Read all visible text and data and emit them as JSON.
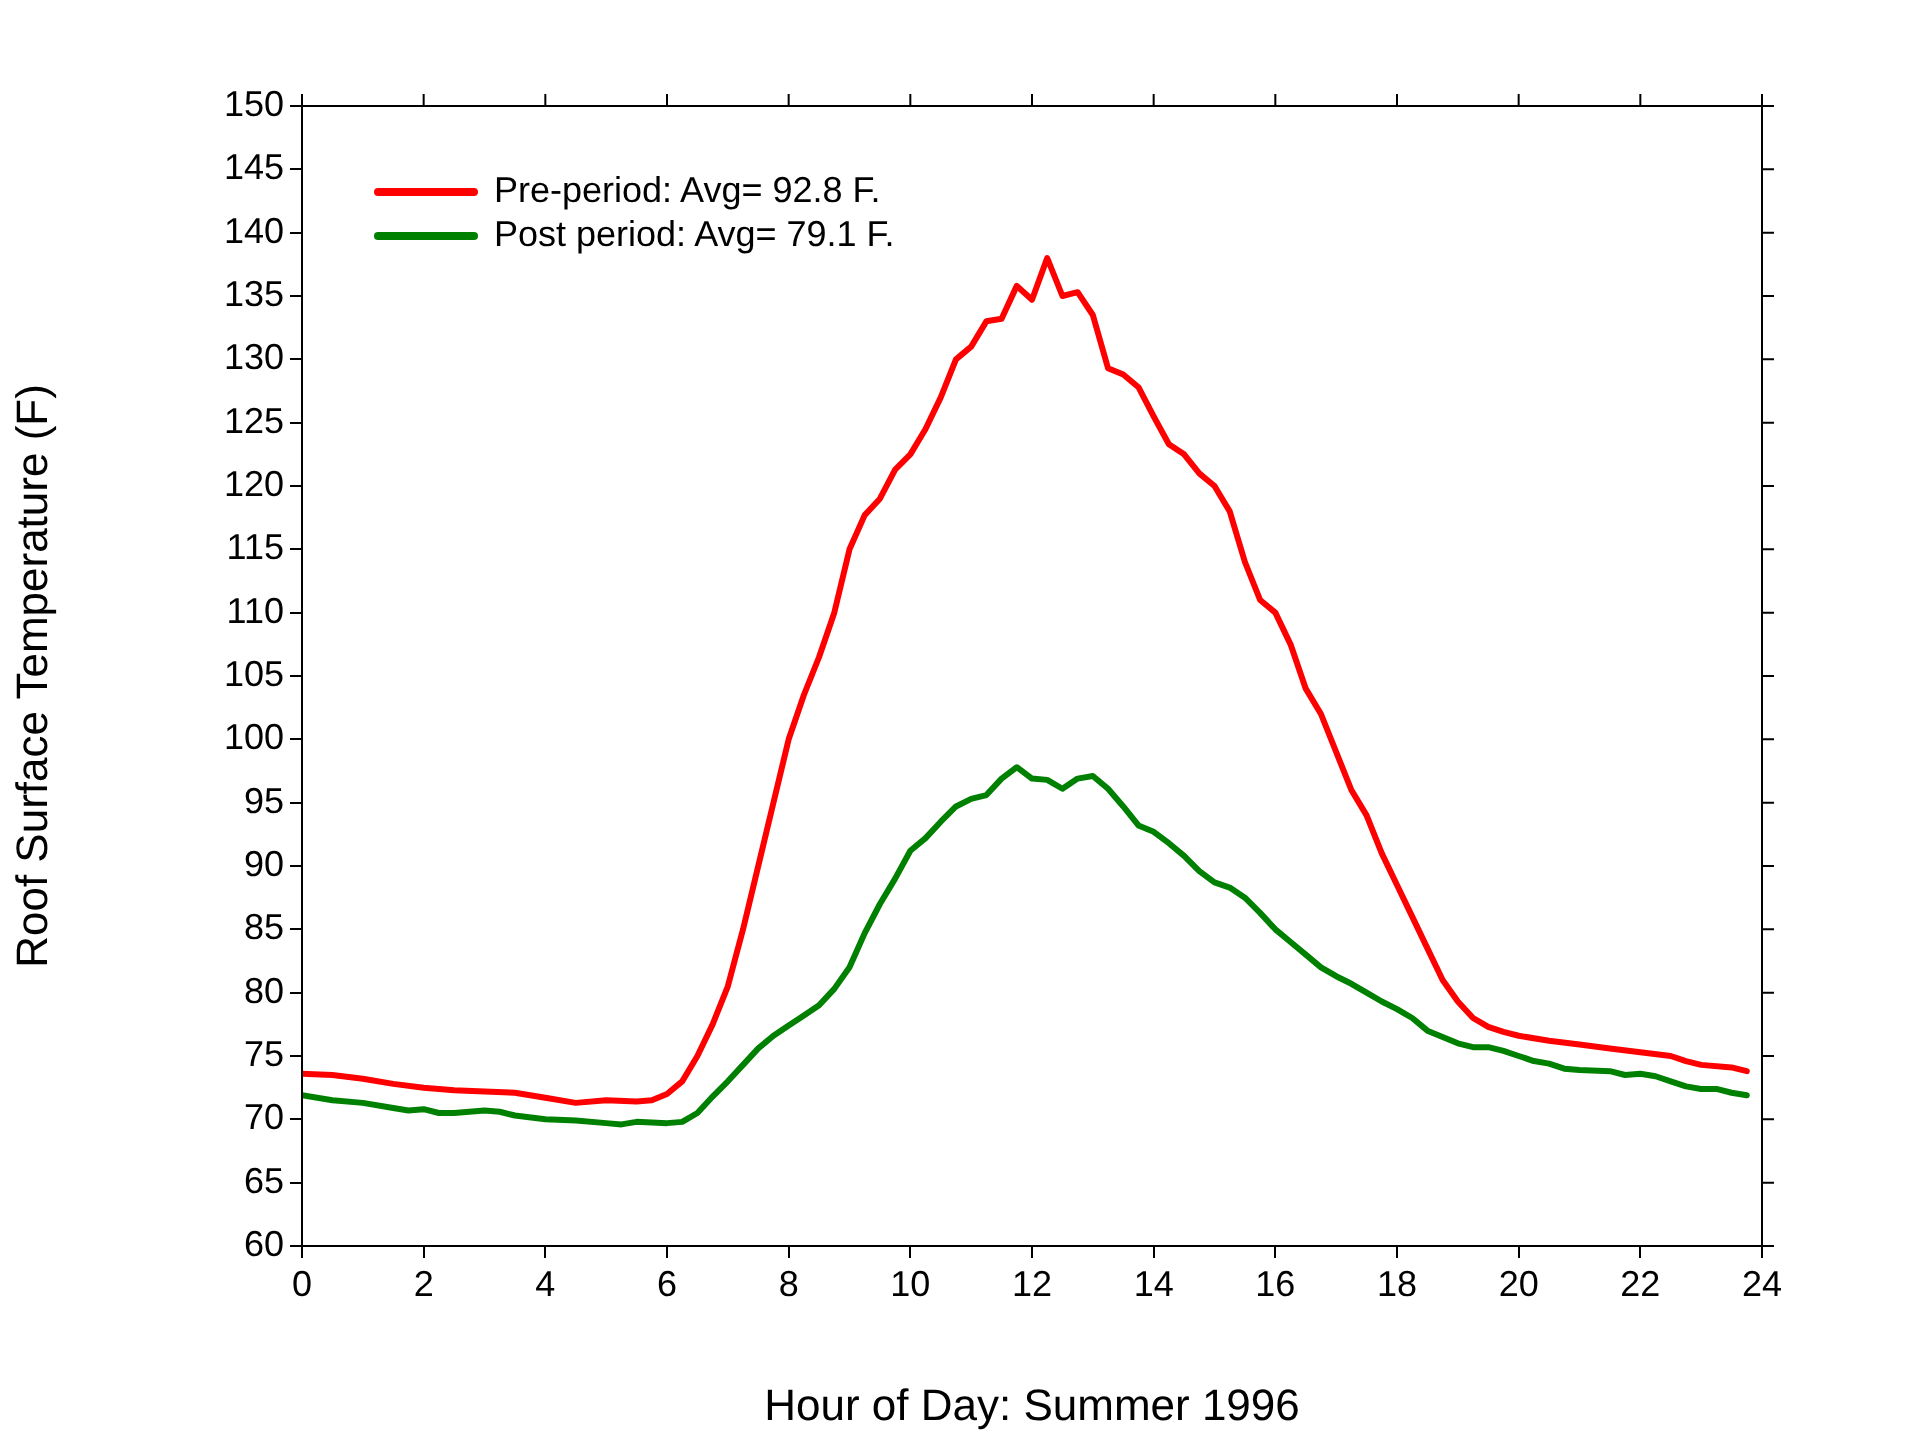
{
  "chart_data": {
    "type": "line",
    "xlabel": "Hour of Day: Summer 1996",
    "ylabel": "Roof Surface Temperature (F)",
    "xlim": [
      0,
      24
    ],
    "xticks": [
      0,
      2,
      4,
      6,
      8,
      10,
      12,
      14,
      16,
      18,
      20,
      22,
      24
    ],
    "ylim": [
      60,
      150
    ],
    "yticks": [
      60,
      65,
      70,
      75,
      80,
      85,
      90,
      95,
      100,
      105,
      110,
      115,
      120,
      125,
      130,
      135,
      140,
      145,
      150
    ],
    "grid": false,
    "legend": "top left",
    "marker": "none",
    "line_style": "solid",
    "series": [
      {
        "name": "Pre-period: Avg= 92.8 F.",
        "color": "#ff0000",
        "x": [
          0,
          0.5,
          1,
          1.5,
          2,
          2.5,
          3,
          3.5,
          4,
          4.5,
          5,
          5.5,
          5.75,
          6,
          6.25,
          6.5,
          6.75,
          7,
          7.25,
          7.5,
          7.75,
          8,
          8.25,
          8.5,
          8.75,
          9,
          9.25,
          9.5,
          9.75,
          10,
          10.25,
          10.5,
          10.75,
          11,
          11.25,
          11.5,
          11.75,
          12,
          12.25,
          12.5,
          12.75,
          13,
          13.25,
          13.5,
          13.75,
          14,
          14.25,
          14.5,
          14.75,
          15,
          15.25,
          15.5,
          15.75,
          16,
          16.25,
          16.5,
          16.75,
          17,
          17.25,
          17.5,
          17.75,
          18,
          18.25,
          18.5,
          18.75,
          19,
          19.25,
          19.5,
          19.75,
          20,
          20.5,
          21,
          21.5,
          22,
          22.5,
          22.75,
          23,
          23.5,
          23.75
        ],
        "values": [
          73.6,
          73.5,
          73.2,
          72.8,
          72.5,
          72.3,
          72.2,
          72.1,
          71.7,
          71.3,
          71.5,
          71.4,
          71.5,
          72,
          73,
          75,
          77.5,
          80.5,
          85,
          90,
          95,
          100,
          103.5,
          106.5,
          110,
          115,
          117.7,
          119,
          121.3,
          122.5,
          124.5,
          127,
          130,
          131,
          133,
          133.2,
          135.8,
          134.7,
          138,
          135,
          135.3,
          133.5,
          129.3,
          128.8,
          127.8,
          125.5,
          123.3,
          122.5,
          121,
          120,
          118,
          114,
          111,
          110,
          107.5,
          104,
          102,
          99,
          96,
          94,
          91,
          88.5,
          86,
          83.5,
          81,
          79.3,
          78,
          77.3,
          76.9,
          76.6,
          76.2,
          75.9,
          75.6,
          75.3,
          75,
          74.6,
          74.3,
          74.1,
          73.8
        ]
      },
      {
        "name": "Post period: Avg= 79.1 F.",
        "color": "#008000",
        "x": [
          0,
          0.5,
          1,
          1.5,
          1.75,
          2,
          2.25,
          2.5,
          3,
          3.25,
          3.5,
          4,
          4.5,
          5,
          5.25,
          5.5,
          6,
          6.25,
          6.5,
          6.75,
          7,
          7.25,
          7.5,
          7.75,
          8,
          8.25,
          8.5,
          8.75,
          9,
          9.25,
          9.5,
          9.75,
          10,
          10.25,
          10.5,
          10.75,
          11,
          11.25,
          11.5,
          11.75,
          12,
          12.25,
          12.5,
          12.75,
          13,
          13.25,
          13.5,
          13.75,
          14,
          14.25,
          14.5,
          14.75,
          15,
          15.25,
          15.5,
          15.75,
          16,
          16.25,
          16.5,
          16.75,
          17,
          17.25,
          17.5,
          17.75,
          18,
          18.25,
          18.5,
          18.75,
          19,
          19.25,
          19.5,
          19.75,
          20,
          20.25,
          20.5,
          20.75,
          21,
          21.5,
          21.75,
          22,
          22.25,
          22.5,
          22.75,
          23,
          23.25,
          23.5,
          23.75
        ],
        "values": [
          71.9,
          71.5,
          71.3,
          70.9,
          70.7,
          70.8,
          70.5,
          70.5,
          70.7,
          70.6,
          70.3,
          70,
          69.9,
          69.7,
          69.6,
          69.8,
          69.7,
          69.8,
          70.5,
          71.8,
          73,
          74.3,
          75.6,
          76.6,
          77.4,
          78.2,
          79,
          80.3,
          82,
          84.7,
          87,
          89,
          91.2,
          92.2,
          93.5,
          94.7,
          95.3,
          95.6,
          96.9,
          97.8,
          96.9,
          96.8,
          96.1,
          96.9,
          97.1,
          96.1,
          94.7,
          93.2,
          92.7,
          91.8,
          90.8,
          89.6,
          88.7,
          88.3,
          87.5,
          86.3,
          85,
          84,
          83,
          82,
          81.3,
          80.7,
          80,
          79.3,
          78.7,
          78,
          77,
          76.5,
          76,
          75.7,
          75.7,
          75.4,
          75,
          74.6,
          74.4,
          74,
          73.9,
          73.8,
          73.5,
          73.6,
          73.4,
          73,
          72.6,
          72.4,
          72.4,
          72.1,
          71.9
        ]
      }
    ]
  }
}
